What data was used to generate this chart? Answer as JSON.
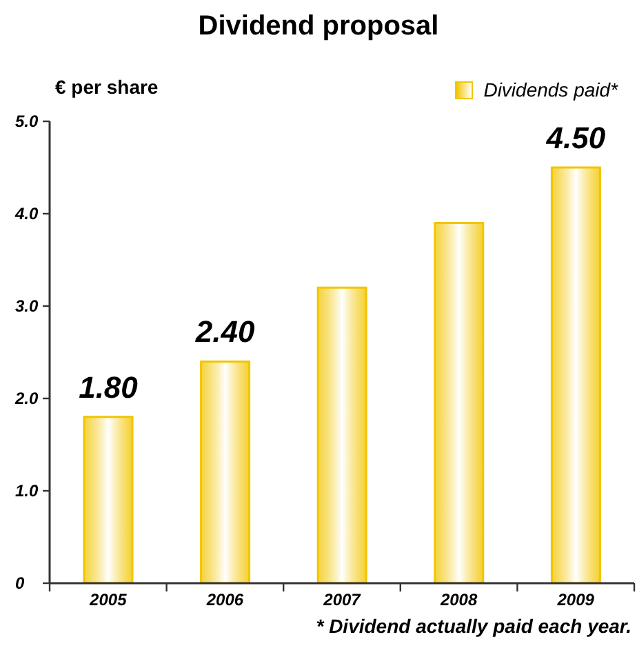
{
  "chart_data": {
    "type": "bar",
    "title": "Dividend proposal",
    "ylabel": "€ per share",
    "legend": "top right",
    "annotations": [
      "* Dividend actually paid each year."
    ],
    "categories": [
      "2005",
      "2006",
      "2007",
      "2008",
      "2009"
    ],
    "series": [
      {
        "name": "Dividends paid*",
        "color": "#f2c500",
        "values": [
          1.8,
          2.4,
          3.2,
          3.9,
          4.5
        ],
        "value_labels": [
          "1.80",
          "2.40",
          null,
          null,
          "4.50"
        ]
      }
    ],
    "ylim": [
      0,
      5
    ],
    "yticks": [
      0,
      {
        "value": 1,
        "label": "1.0"
      },
      {
        "value": 2,
        "label": "2.0"
      },
      {
        "value": 3,
        "label": "3.0"
      },
      {
        "value": 4,
        "label": "4.0"
      },
      {
        "value": 5,
        "label": "5.0"
      }
    ]
  }
}
